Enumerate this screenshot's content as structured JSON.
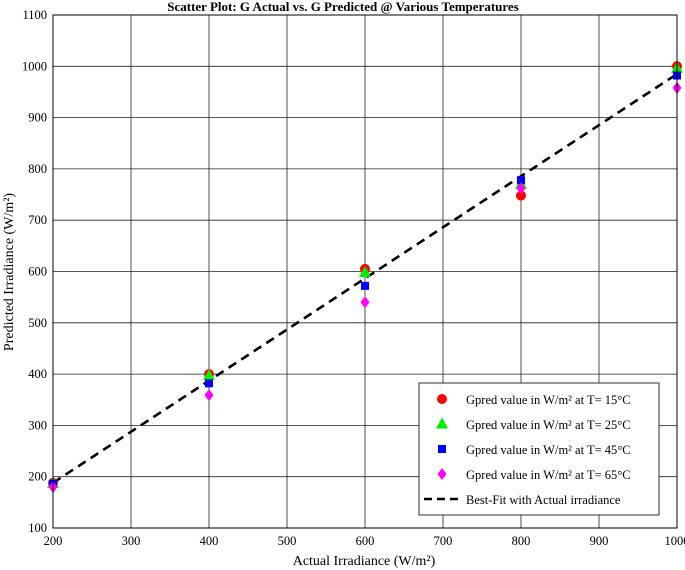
{
  "chart_data": {
    "type": "scatter",
    "title": "Scatter Plot: G Actual vs. G Predicted @ Various Temperatures",
    "xlabel": "Actual Irradiance (W/m²)",
    "ylabel": "Predicted Irradiance (W/m²)",
    "xlim": [
      200,
      1000
    ],
    "ylim": [
      100,
      1100
    ],
    "xticks": [
      200,
      300,
      400,
      500,
      600,
      700,
      800,
      900,
      1000
    ],
    "yticks": [
      100,
      200,
      300,
      400,
      500,
      600,
      700,
      800,
      900,
      1000,
      1100
    ],
    "grid": true,
    "legend_position": "bottom-right",
    "series": [
      {
        "name": "Gpred value in W/m² at T= 15°C",
        "marker": "circle",
        "color": "#ff0000",
        "x": [
          200,
          400,
          600,
          800,
          1000
        ],
        "y": [
          188,
          400,
          605,
          748,
          1000
        ]
      },
      {
        "name": "Gpred value in W/m² at T= 25°C",
        "marker": "triangle",
        "color": "#00ee00",
        "x": [
          200,
          400,
          600,
          800,
          1000
        ],
        "y": [
          187,
          397,
          598,
          770,
          996
        ]
      },
      {
        "name": "Gpred value in W/m² at T= 45°C",
        "marker": "square",
        "color": "#0000ff",
        "x": [
          200,
          400,
          600,
          800,
          1000
        ],
        "y": [
          186,
          382,
          572,
          778,
          982
        ]
      },
      {
        "name": "Gpred value in W/m² at T= 65°C",
        "marker": "diamond",
        "color": "#ff00ff",
        "x": [
          200,
          400,
          600,
          800,
          1000
        ],
        "y": [
          180,
          359,
          540,
          762,
          958
        ]
      }
    ],
    "fit_line": {
      "name": "Best-Fit with Actual irradiance",
      "style": "dashed",
      "color": "#000000",
      "x": [
        200,
        1000
      ],
      "y": [
        188,
        985
      ]
    }
  }
}
